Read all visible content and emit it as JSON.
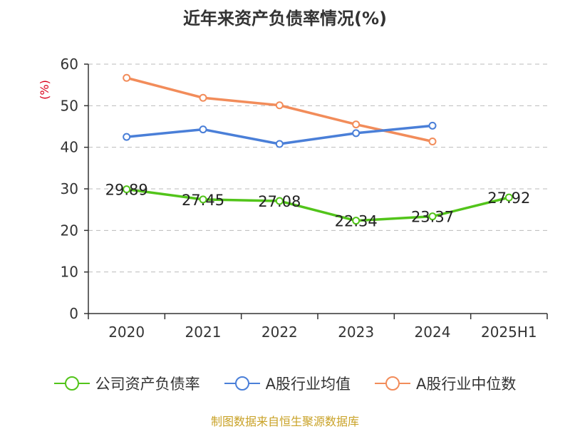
{
  "chart_data": {
    "type": "line",
    "title": "近年来资产负债率情况(%)",
    "ylabel": "(%)",
    "xlabel": "",
    "categories": [
      "2020",
      "2021",
      "2022",
      "2023",
      "2024",
      "2025H1"
    ],
    "ylim": [
      0,
      60
    ],
    "yticks": [
      0,
      10,
      20,
      30,
      40,
      50,
      60
    ],
    "grid": true,
    "legend_position": "bottom",
    "series": [
      {
        "name": "公司资产负债率",
        "color": "#52c41a",
        "values": [
          29.89,
          27.45,
          27.08,
          22.34,
          23.37,
          27.92
        ],
        "data_labels": [
          "29.89",
          "27.45",
          "27.08",
          "22.34",
          "23.37",
          "27.92"
        ]
      },
      {
        "name": "A股行业均值",
        "color": "#4a7fd8",
        "values": [
          42.5,
          44.3,
          40.8,
          43.4,
          45.2,
          null
        ]
      },
      {
        "name": "A股行业中位数",
        "color": "#f28c5a",
        "values": [
          56.7,
          51.9,
          50.1,
          45.5,
          41.4,
          null
        ]
      }
    ]
  },
  "source": "制图数据来自恒生聚源数据库"
}
